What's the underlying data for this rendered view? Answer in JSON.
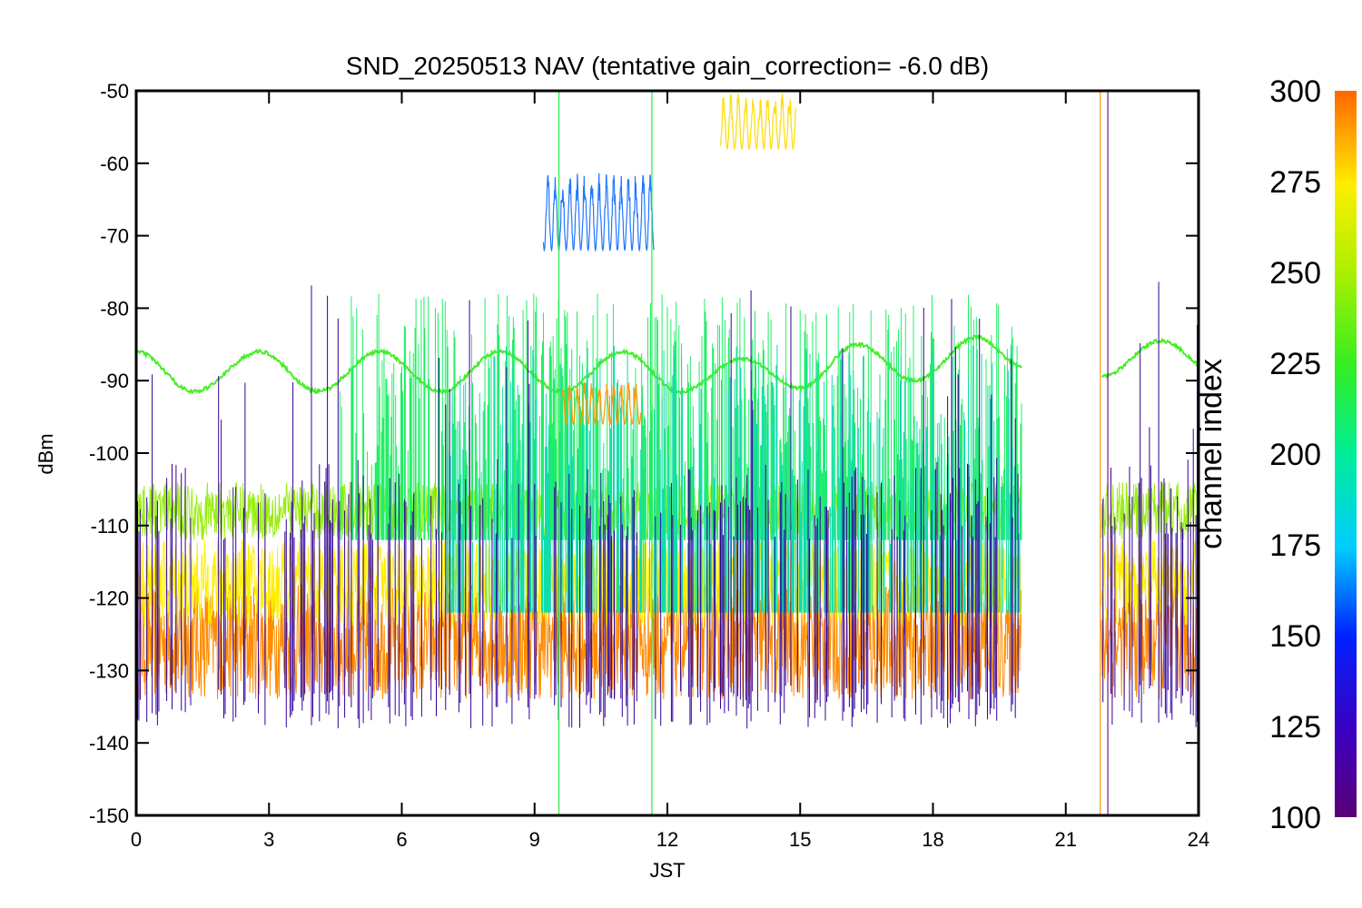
{
  "chart_data": {
    "type": "line",
    "title": "SND_20250513 NAV (tentative gain_correction= -6.0 dB)",
    "xlabel": "JST",
    "ylabel": "dBm",
    "xlim": [
      0,
      24
    ],
    "ylim": [
      -150,
      -50
    ],
    "xticks": [
      0,
      3,
      6,
      9,
      12,
      15,
      18,
      21,
      24
    ],
    "yticks": [
      -50,
      -60,
      -70,
      -80,
      -90,
      -100,
      -110,
      -120,
      -130,
      -140,
      -150
    ],
    "colorbar": {
      "label": "channel index",
      "range": [
        100,
        300
      ],
      "ticks": [
        100,
        125,
        150,
        175,
        200,
        225,
        250,
        275,
        300
      ],
      "colormap": "rainbow"
    },
    "data_gap": [
      20.0,
      21.8
    ],
    "series": [
      {
        "channel": 290,
        "color": "#ff8c00",
        "band_dBm": [
          -134,
          -118
        ],
        "center_dBm": -126,
        "t_range": [
          0,
          24
        ]
      },
      {
        "channel": 270,
        "color": "#ffee00",
        "band_dBm": [
          -124,
          -112
        ],
        "center_dBm": -118,
        "t_range": [
          0,
          24
        ]
      },
      {
        "channel": 250,
        "color": "#99ee11",
        "band_dBm": [
          -112,
          -104
        ],
        "center_dBm": -108,
        "t_range": [
          0,
          24
        ]
      },
      {
        "channel": 240,
        "color": "#44ee22",
        "type": "diurnal",
        "t_range": [
          0,
          24
        ],
        "x": [
          0,
          1.3,
          2.8,
          4.1,
          5.5,
          6.9,
          8.2,
          9.6,
          11,
          12.3,
          13.7,
          15,
          16.3,
          17.6,
          19,
          20
        ],
        "y": [
          -86,
          -91.5,
          -86,
          -91.5,
          -86,
          -91.5,
          -86,
          -91.5,
          -86,
          -91.5,
          -87,
          -91,
          -85,
          -90,
          -84,
          -88
        ]
      },
      {
        "channel": 225,
        "color": "#22ee66",
        "type": "bursts",
        "t_range": [
          4.6,
          20
        ],
        "peak_dBm": -78,
        "floor_dBm": -112
      },
      {
        "channel": 200,
        "color": "#11ddaa",
        "type": "bursts",
        "t_range": [
          7,
          20
        ],
        "peak_dBm": -85,
        "floor_dBm": -122
      },
      {
        "channel": 150,
        "color": "#2277ff",
        "type": "segment",
        "t_range": [
          9.2,
          11.7
        ],
        "band_dBm": [
          -72,
          -61
        ]
      },
      {
        "channel": 110,
        "color": "#330099",
        "type": "spikes",
        "t_range": [
          0,
          24
        ],
        "peak_dBm": -76,
        "floor_dBm": -138
      },
      {
        "channel": 275,
        "color": "#ffdd00",
        "type": "segment",
        "t_range": [
          13.2,
          14.9
        ],
        "band_dBm": [
          -58,
          -50
        ]
      },
      {
        "channel": 285,
        "color": "#ff9900",
        "type": "segment",
        "t_range": [
          9.6,
          11.4
        ],
        "band_dBm": [
          -96,
          -90
        ]
      }
    ]
  }
}
